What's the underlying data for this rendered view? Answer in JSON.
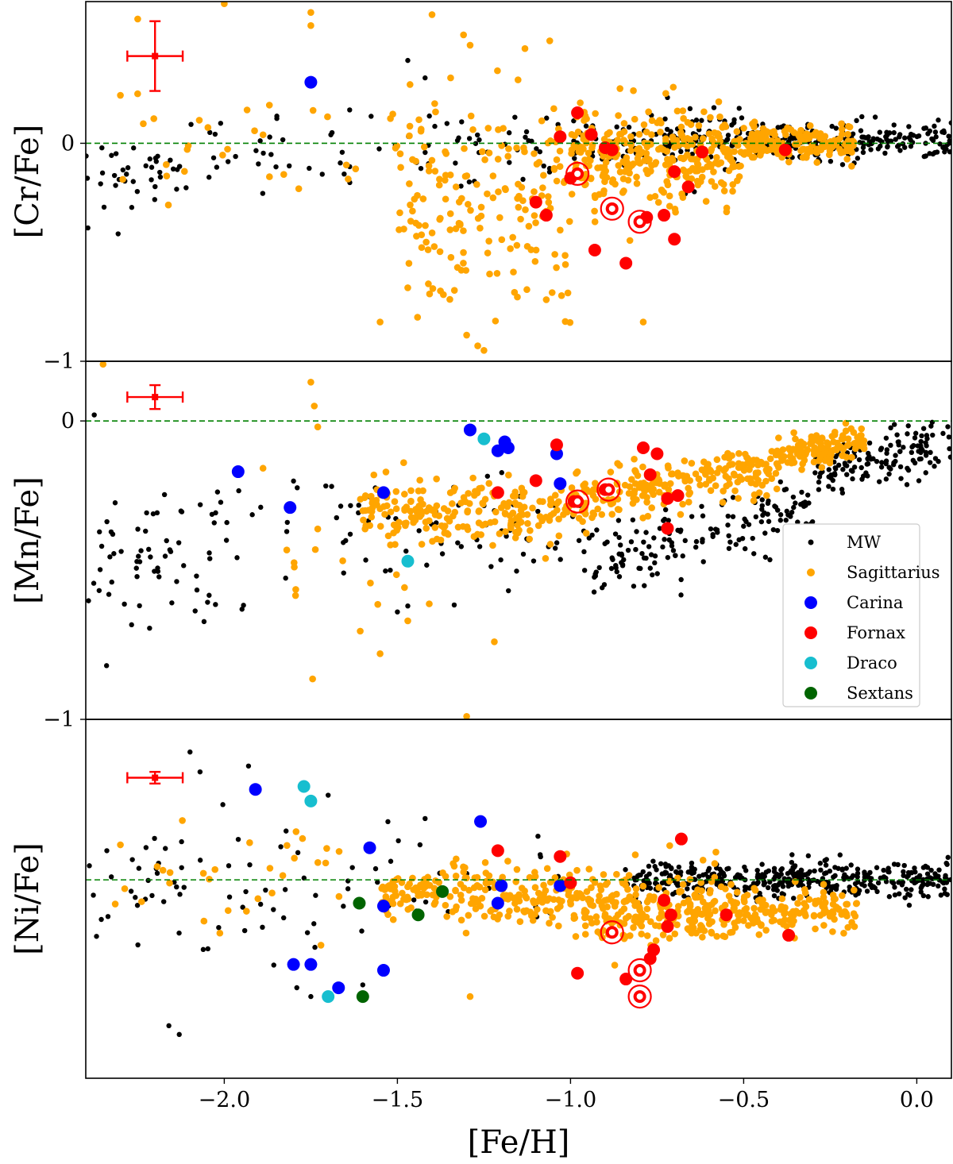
{
  "chart_data": {
    "type": "scatter",
    "x_label": "[Fe/H]",
    "x_range": [
      -2.4,
      0.1
    ],
    "x_ticks": [
      {
        "value": -2.0,
        "label": "−2.0"
      },
      {
        "value": -1.5,
        "label": "−1.5"
      },
      {
        "value": -1.0,
        "label": "−1.0"
      },
      {
        "value": -0.5,
        "label": "−0.5"
      },
      {
        "value": 0.0,
        "label": "0.0"
      }
    ],
    "legend": {
      "placement": "center-right of middle panel",
      "entries": [
        {
          "name": "MW",
          "color": "#000000",
          "marker": "small-dot"
        },
        {
          "name": "Sagittarius",
          "color": "#FFA500",
          "marker": "dot"
        },
        {
          "name": "Carina",
          "color": "#0000FF",
          "marker": "large-dot"
        },
        {
          "name": "Fornax",
          "color": "#FF0000",
          "marker": "large-dot"
        },
        {
          "name": "Draco",
          "color": "#17BECF",
          "marker": "large-dot"
        },
        {
          "name": "Sextans",
          "color": "#006400",
          "marker": "large-dot"
        }
      ]
    },
    "reference_line": {
      "y": 0,
      "color": "#008000",
      "style": "dashed"
    },
    "panels": [
      {
        "id": "cr",
        "y_label": "[Cr/Fe]",
        "y_range": [
          -1.0,
          0.65
        ],
        "y_ticks": [
          {
            "value": 0,
            "label": "0"
          },
          {
            "value": -1,
            "label": "−1"
          }
        ],
        "error_bar": {
          "x": -2.2,
          "y": 0.4,
          "xerr": 0.08,
          "yerr": 0.16
        },
        "mw_cloud": [
          {
            "x0": -2.4,
            "x1": -2.1,
            "ymean": -0.14,
            "ysd": 0.09,
            "n": 40
          },
          {
            "x0": -2.1,
            "x1": -1.5,
            "ymean": -0.02,
            "ysd": 0.1,
            "n": 35
          },
          {
            "x0": -1.5,
            "x1": -1.0,
            "ymean": -0.01,
            "ysd": 0.08,
            "n": 40
          },
          {
            "x0": -1.0,
            "x1": -0.5,
            "ymean": 0.02,
            "ysd": 0.06,
            "n": 150
          },
          {
            "x0": -0.5,
            "x1": 0.1,
            "ymean": 0.01,
            "ysd": 0.04,
            "n": 220
          }
        ],
        "sgr_cloud": [
          {
            "x0": -2.3,
            "x1": -1.5,
            "ymean": -0.05,
            "ysd": 0.17,
            "n": 30
          },
          {
            "x0": -1.5,
            "x1": -1.0,
            "ymean": -0.25,
            "ysd": 0.27,
            "n": 180
          },
          {
            "x0": -1.0,
            "x1": -0.5,
            "ymean": -0.06,
            "ysd": 0.1,
            "n": 300
          },
          {
            "x0": -0.5,
            "x1": -0.17,
            "ymean": 0.0,
            "ysd": 0.04,
            "n": 160
          }
        ],
        "mw_points": [
          [
            -1.47,
            0.38
          ],
          [
            -1.42,
            0.3
          ],
          [
            -0.72,
            0.21
          ],
          [
            -0.12,
            0.12
          ]
        ],
        "sgr_points": [
          [
            -2.25,
            0.57
          ],
          [
            -2.0,
            0.64
          ],
          [
            -1.75,
            0.6
          ],
          [
            -1.4,
            0.59
          ],
          [
            -1.29,
            0.45
          ],
          [
            -1.06,
            0.47
          ],
          [
            -2.3,
            0.22
          ],
          [
            -1.75,
            0.54
          ],
          [
            -0.79,
            -0.82
          ],
          [
            -1.55,
            -0.82
          ],
          [
            -1.3,
            -0.88
          ],
          [
            -1.25,
            -0.95
          ]
        ],
        "carina": [
          [
            -1.75,
            0.28
          ]
        ],
        "draco": [],
        "sextans": [],
        "fornax": [
          [
            -0.98,
            0.14
          ],
          [
            -1.03,
            0.03
          ],
          [
            -0.94,
            0.04
          ],
          [
            -0.9,
            -0.02
          ],
          [
            -0.88,
            -0.03
          ],
          [
            -0.62,
            -0.04
          ],
          [
            -0.38,
            -0.03
          ],
          [
            -0.7,
            -0.13
          ],
          [
            -0.66,
            -0.2
          ],
          [
            -1.0,
            -0.16
          ],
          [
            -1.1,
            -0.27
          ],
          [
            -1.07,
            -0.33
          ],
          [
            -0.78,
            -0.34
          ],
          [
            -0.73,
            -0.33
          ],
          [
            -0.7,
            -0.44
          ],
          [
            -0.93,
            -0.49
          ],
          [
            -0.84,
            -0.55
          ]
        ],
        "fornax_circled": [
          [
            -0.98,
            -0.14
          ],
          [
            -0.88,
            -0.3
          ],
          [
            -0.8,
            -0.36
          ]
        ]
      },
      {
        "id": "mn",
        "y_label": "[Mn/Fe]",
        "y_range": [
          -1.0,
          0.2
        ],
        "y_ticks": [
          {
            "value": 0,
            "label": "0"
          },
          {
            "value": -1,
            "label": "−1"
          }
        ],
        "error_bar": {
          "x": -2.2,
          "y": 0.08,
          "xerr": 0.08,
          "yerr": 0.04
        },
        "mw_cloud": [
          {
            "x0": -2.4,
            "x1": -1.9,
            "ymean": -0.46,
            "ysd": 0.14,
            "n": 70
          },
          {
            "x0": -1.9,
            "x1": -1.5,
            "ymean": -0.35,
            "ysd": 0.1,
            "n": 25
          },
          {
            "x0": -1.5,
            "x1": -0.95,
            "ymean": -0.38,
            "ysd": 0.09,
            "n": 50
          },
          {
            "x0": -0.95,
            "x1": -0.3,
            "ymean": -0.38,
            "ysd": 0.06,
            "n": 160,
            "slope": 0.28
          },
          {
            "x0": -0.3,
            "x1": 0.1,
            "ymean": -0.12,
            "ysd": 0.04,
            "n": 140,
            "slope": 0.25
          }
        ],
        "sgr_cloud": [
          {
            "x0": -1.6,
            "x1": -1.0,
            "ymean": -0.3,
            "ysd": 0.05,
            "n": 200
          },
          {
            "x0": -1.0,
            "x1": -0.4,
            "ymean": -0.21,
            "ysd": 0.04,
            "n": 220,
            "slope": 0.2
          },
          {
            "x0": -0.4,
            "x1": -0.15,
            "ymean": -0.09,
            "ysd": 0.03,
            "n": 120,
            "slope": 0.15
          },
          {
            "x0": -1.9,
            "x1": -1.4,
            "ymean": -0.43,
            "ysd": 0.15,
            "n": 25
          }
        ],
        "mw_points": [
          [
            -2.34,
            -0.82
          ],
          [
            -1.5,
            -0.64
          ],
          [
            -1.47,
            -0.62
          ]
        ],
        "sgr_points": [
          [
            -2.35,
            0.19
          ],
          [
            -1.75,
            0.13
          ],
          [
            -1.74,
            0.05
          ],
          [
            -1.73,
            -0.02
          ],
          [
            -1.3,
            -0.99
          ],
          [
            -1.55,
            -0.78
          ],
          [
            -1.22,
            -0.74
          ],
          [
            -1.47,
            -0.67
          ]
        ],
        "carina": [
          [
            -1.29,
            -0.03
          ],
          [
            -1.21,
            -0.1
          ],
          [
            -1.19,
            -0.07
          ],
          [
            -1.18,
            -0.09
          ],
          [
            -1.96,
            -0.17
          ],
          [
            -1.81,
            -0.29
          ],
          [
            -1.54,
            -0.24
          ],
          [
            -1.04,
            -0.11
          ],
          [
            -1.03,
            -0.21
          ]
        ],
        "draco": [
          [
            -1.25,
            -0.06
          ],
          [
            -1.47,
            -0.47
          ]
        ],
        "sextans": [],
        "fornax": [
          [
            -1.04,
            -0.08
          ],
          [
            -1.21,
            -0.24
          ],
          [
            -1.1,
            -0.2
          ],
          [
            -0.9,
            -0.23
          ],
          [
            -0.79,
            -0.09
          ],
          [
            -0.75,
            -0.11
          ],
          [
            -0.77,
            -0.18
          ],
          [
            -0.72,
            -0.26
          ],
          [
            -0.69,
            -0.25
          ],
          [
            -0.72,
            -0.36
          ],
          [
            -0.99,
            -0.27
          ]
        ],
        "fornax_circled": [
          [
            -0.98,
            -0.27
          ],
          [
            -0.89,
            -0.23
          ]
        ]
      },
      {
        "id": "ni",
        "y_label": "[Ni/Fe]",
        "y_range": [
          -0.68,
          0.55
        ],
        "y_ticks": [],
        "error_bar": {
          "x": -2.2,
          "y": 0.35,
          "xerr": 0.08,
          "yerr": 0.02
        },
        "mw_cloud": [
          {
            "x0": -2.4,
            "x1": -1.7,
            "ymean": -0.05,
            "ysd": 0.13,
            "n": 60
          },
          {
            "x0": -1.7,
            "x1": -1.0,
            "ymean": -0.02,
            "ysd": 0.08,
            "n": 30
          },
          {
            "x0": -0.85,
            "x1": 0.1,
            "ymean": 0.0,
            "ysd": 0.03,
            "n": 420
          }
        ],
        "sgr_cloud": [
          {
            "x0": -2.35,
            "x1": -1.6,
            "ymean": -0.02,
            "ysd": 0.11,
            "n": 30
          },
          {
            "x0": -1.55,
            "x1": -1.0,
            "ymean": -0.05,
            "ysd": 0.05,
            "n": 200
          },
          {
            "x0": -1.0,
            "x1": -0.55,
            "ymean": -0.1,
            "ysd": 0.06,
            "n": 240
          },
          {
            "x0": -0.55,
            "x1": -0.17,
            "ymean": -0.11,
            "ysd": 0.04,
            "n": 140
          }
        ],
        "mw_points": [
          [
            -2.07,
            0.37
          ],
          [
            -1.93,
            0.39
          ],
          [
            -2.13,
            -0.53
          ],
          [
            -2.16,
            -0.5
          ],
          [
            -1.75,
            -0.4
          ],
          [
            -1.7,
            0.29
          ],
          [
            -1.42,
            0.21
          ],
          [
            -1.6,
            -0.36
          ]
        ],
        "sgr_points": [
          [
            -1.29,
            -0.4
          ],
          [
            -2.3,
            0.12
          ]
        ],
        "carina": [
          [
            -1.91,
            0.31
          ],
          [
            -1.26,
            0.2
          ],
          [
            -1.58,
            0.11
          ],
          [
            -1.2,
            -0.02
          ],
          [
            -1.03,
            -0.02
          ],
          [
            -1.54,
            -0.09
          ],
          [
            -1.21,
            -0.08
          ],
          [
            -1.8,
            -0.29
          ],
          [
            -1.75,
            -0.29
          ],
          [
            -1.54,
            -0.31
          ],
          [
            -1.67,
            -0.37
          ]
        ],
        "draco": [
          [
            -1.77,
            0.32
          ],
          [
            -1.75,
            0.27
          ],
          [
            -1.7,
            -0.4
          ]
        ],
        "sextans": [
          [
            -1.61,
            -0.08
          ],
          [
            -1.44,
            -0.12
          ],
          [
            -1.37,
            -0.04
          ],
          [
            -1.6,
            -0.4
          ]
        ],
        "fornax": [
          [
            -1.21,
            0.1
          ],
          [
            -1.03,
            0.08
          ],
          [
            -0.68,
            0.14
          ],
          [
            -1.0,
            -0.01
          ],
          [
            -0.73,
            -0.07
          ],
          [
            -0.71,
            -0.12
          ],
          [
            -0.72,
            -0.16
          ],
          [
            -0.55,
            -0.12
          ],
          [
            -0.37,
            -0.19
          ],
          [
            -0.76,
            -0.24
          ],
          [
            -0.77,
            -0.27
          ],
          [
            -0.98,
            -0.32
          ],
          [
            -0.84,
            -0.34
          ]
        ],
        "fornax_circled": [
          [
            -0.88,
            -0.18
          ],
          [
            -0.8,
            -0.31
          ],
          [
            -0.8,
            -0.4
          ]
        ]
      }
    ]
  }
}
